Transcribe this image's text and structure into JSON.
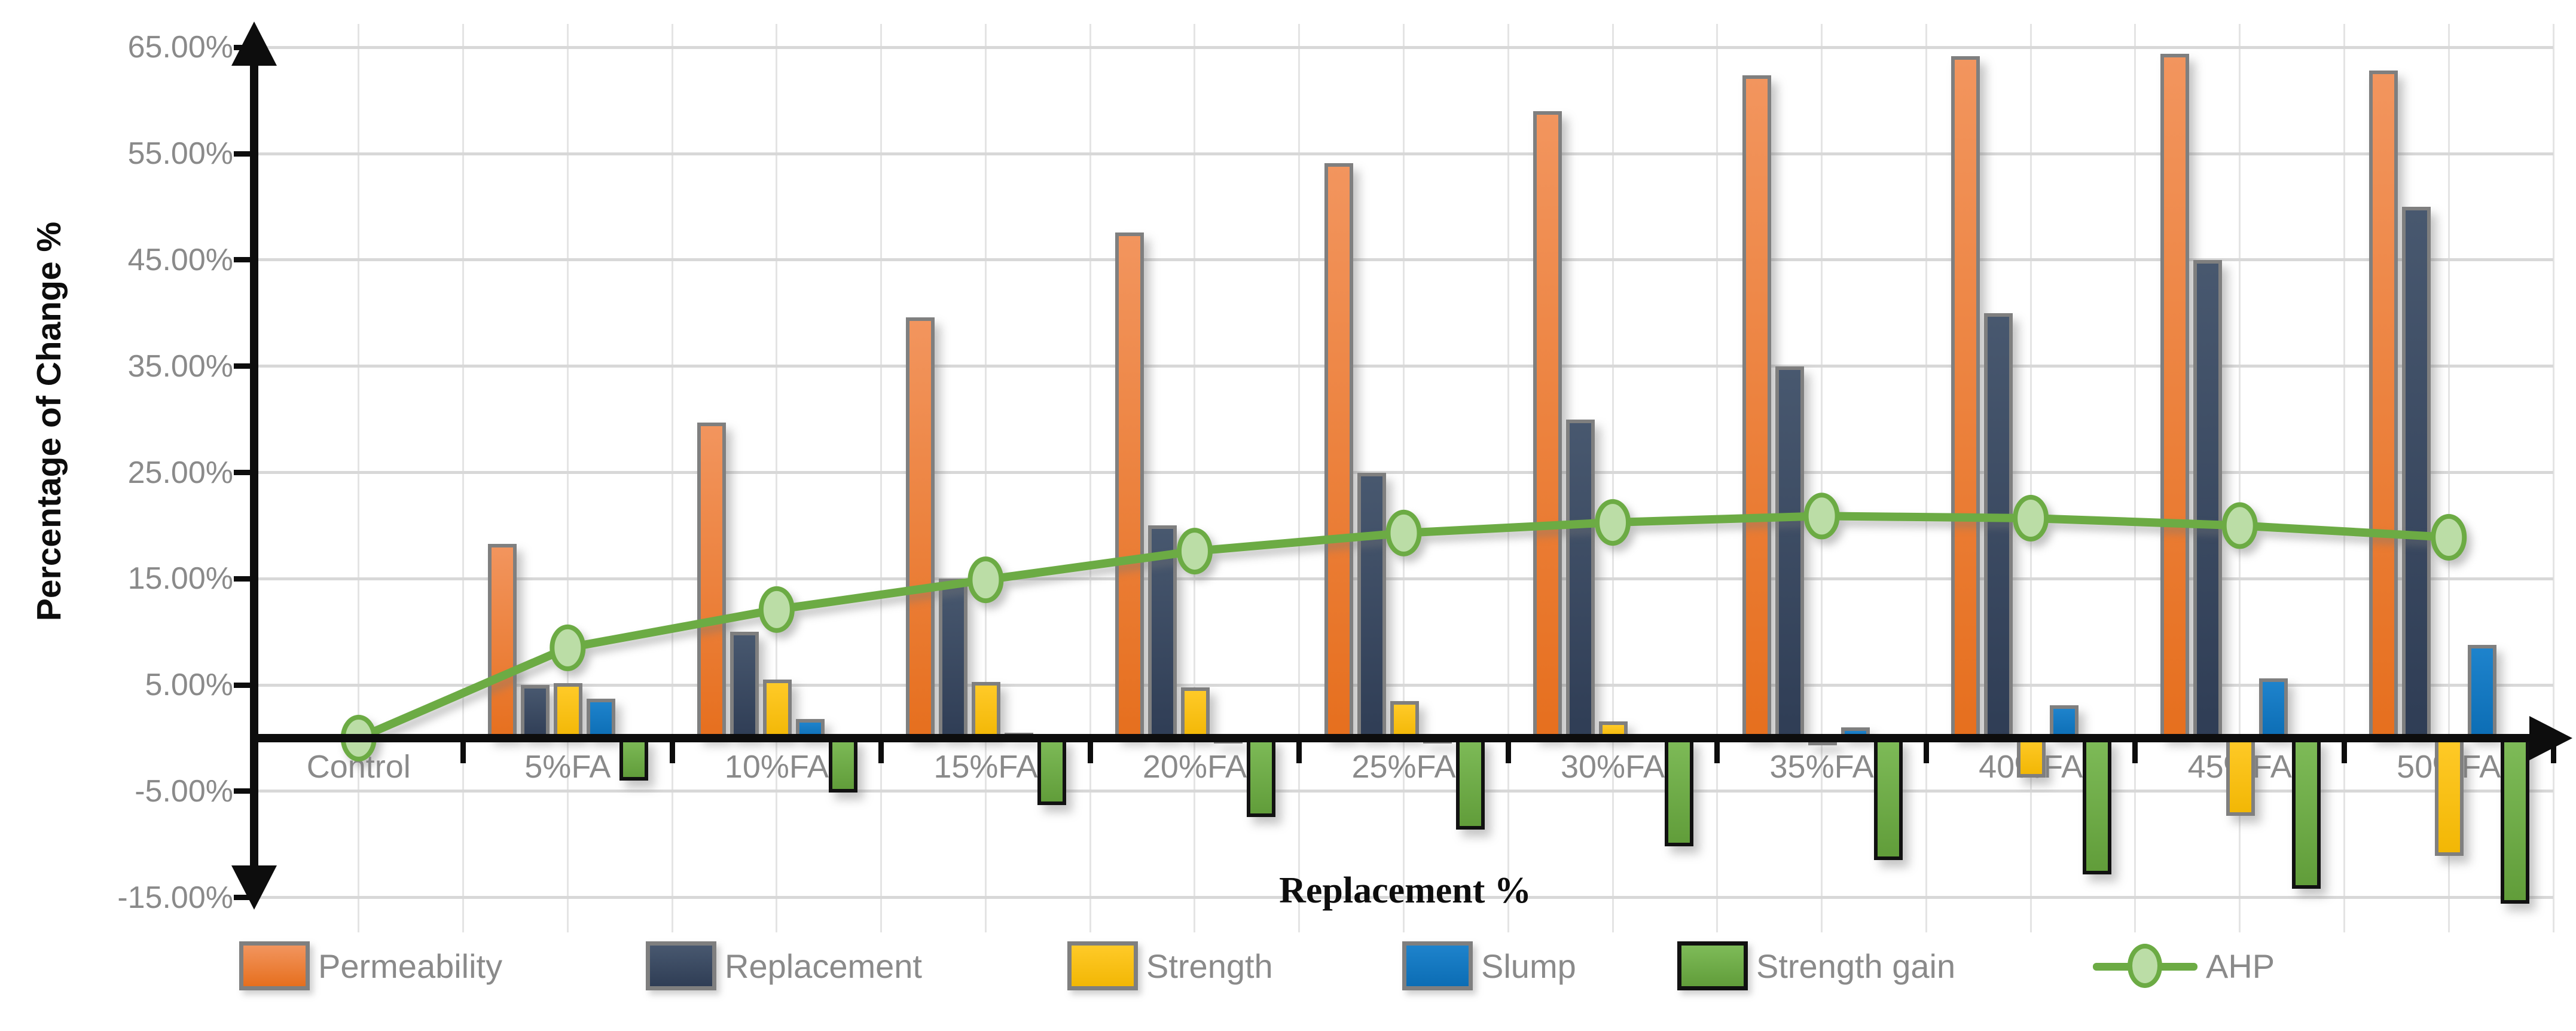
{
  "chart_data": {
    "type": "combo-bar-line",
    "title": "",
    "xlabel": "Replacement %",
    "ylabel": "Percentage of Change %",
    "categories": [
      "Control",
      "5%FA",
      "10%FA",
      "15%FA",
      "20%FA",
      "25%FA",
      "30%FA",
      "35%FA",
      "40%FA",
      "45%FA",
      "50%FA"
    ],
    "y_axis": {
      "min": -15,
      "max": 65,
      "ticks": [
        {
          "label": "65.00%",
          "value": 65
        },
        {
          "label": "55.00%",
          "value": 55
        },
        {
          "label": "45.00%",
          "value": 45
        },
        {
          "label": "35.00%",
          "value": 35
        },
        {
          "label": "25.00%",
          "value": 25
        },
        {
          "label": "15.00%",
          "value": 15
        },
        {
          "label": "5.00%",
          "value": 5
        },
        {
          "label": "-5.00%",
          "value": -5
        },
        {
          "label": "-15.00%",
          "value": -15
        }
      ]
    },
    "grid": {
      "horizontal": true,
      "vertical": true
    },
    "legend_position": "bottom",
    "series": [
      {
        "name": "Permeability",
        "type": "bar",
        "color_top": "#F2955E",
        "color_bottom": "#E66F1E",
        "border": "#7F7F7F",
        "values": [
          null,
          18.3,
          29.7,
          39.6,
          47.6,
          54.1,
          59.0,
          62.4,
          64.2,
          64.4,
          62.8
        ]
      },
      {
        "name": "Replacement",
        "type": "bar",
        "color_top": "#48586F",
        "color_bottom": "#2F3D55",
        "border": "#7F7F7F",
        "values": [
          null,
          5,
          10,
          15,
          20,
          25,
          30,
          35,
          40,
          45,
          50
        ]
      },
      {
        "name": "Strength",
        "type": "bar",
        "color_top": "#FFCA28",
        "color_bottom": "#F2B705",
        "border": "#7F7F7F",
        "values": [
          null,
          5.2,
          5.5,
          5.3,
          4.8,
          3.5,
          1.6,
          -0.7,
          -3.7,
          -7.3,
          -11.1
        ]
      },
      {
        "name": "Slump",
        "type": "bar",
        "color_top": "#1E83CC",
        "color_bottom": "#0C6DB4",
        "border": "#7F7F7F",
        "values": [
          null,
          3.7,
          1.8,
          0.5,
          -0.5,
          -0.5,
          0.3,
          1.0,
          3.1,
          5.6,
          8.8
        ]
      },
      {
        "name": "Strength gain",
        "type": "bar",
        "color_top": "#7EBB58",
        "color_bottom": "#619D3A",
        "border": "#111111",
        "values": [
          null,
          -4.0,
          -5.1,
          -6.3,
          -7.4,
          -8.6,
          -10.2,
          -11.5,
          -12.8,
          -14.2,
          -15.6
        ]
      },
      {
        "name": "AHP",
        "type": "line",
        "color": "#6CAB44",
        "marker_fill": "#BBDDA6",
        "marker_stroke": "#6CAB44",
        "values": [
          0,
          8.5,
          12.1,
          14.9,
          17.6,
          19.3,
          20.3,
          20.9,
          20.7,
          20.0,
          18.9
        ]
      }
    ]
  }
}
